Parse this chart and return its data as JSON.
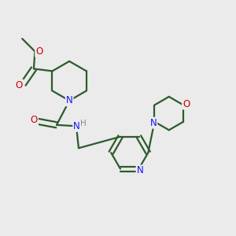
{
  "bg_color": "#ebebeb",
  "bond_color": "#2d5a2d",
  "N_color": "#1414ff",
  "O_color": "#cc0000",
  "line_width": 1.6,
  "font_size": 8.5,
  "fig_width": 3.0,
  "fig_height": 3.0,
  "dpi": 100,
  "xlim": [
    0,
    10
  ],
  "ylim": [
    0,
    10
  ]
}
